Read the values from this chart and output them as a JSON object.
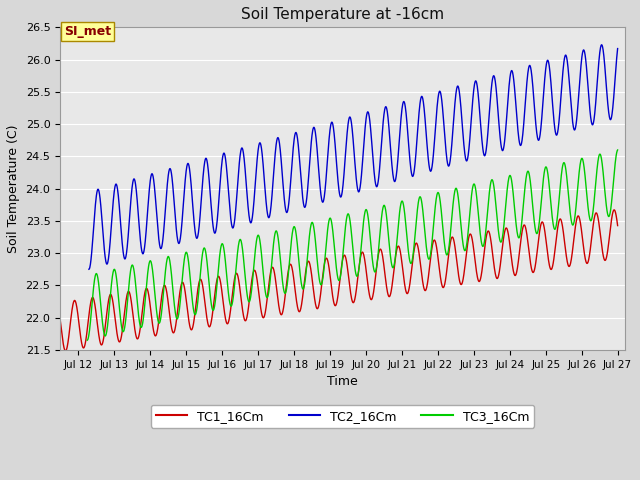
{
  "title": "Soil Temperature at -16cm",
  "xlabel": "Time",
  "ylabel": "Soil Temperature (C)",
  "ylim": [
    21.5,
    26.5
  ],
  "yticks": [
    21.5,
    22.0,
    22.5,
    23.0,
    23.5,
    24.0,
    24.5,
    25.0,
    25.5,
    26.0,
    26.5
  ],
  "xlim_days": [
    11.5,
    27.2
  ],
  "xtick_days": [
    12,
    13,
    14,
    15,
    16,
    17,
    18,
    19,
    20,
    21,
    22,
    23,
    24,
    25,
    26,
    27
  ],
  "xtick_labels": [
    "Jul 12",
    "Jul 13",
    "Jul 14",
    "Jul 15",
    "Jul 16",
    "Jul 17",
    "Jul 18",
    "Jul 19",
    "Jul 20",
    "Jul 21",
    "Jul 22",
    "Jul 23",
    "Jul 24",
    "Jul 25",
    "Jul 26",
    "Jul 27"
  ],
  "legend_labels": [
    "TC1_16Cm",
    "TC2_16Cm",
    "TC3_16Cm"
  ],
  "legend_colors": [
    "#cc0000",
    "#0000cc",
    "#00cc00"
  ],
  "fig_bg_color": "#d8d8d8",
  "ax_bg_color": "#e8e8e8",
  "grid_color": "#ffffff",
  "annotation_text": "SI_met",
  "annotation_bg": "#ffff99",
  "annotation_border": "#aa8800",
  "annotation_text_color": "#880000",
  "tc1_start": 21.85,
  "tc1_end": 23.3,
  "tc1_amp": 0.38,
  "tc1_freq": 2.0,
  "tc1_phase": 2.8,
  "tc1_start_t": 11.5,
  "tc2_start": 23.35,
  "tc2_end": 25.7,
  "tc2_amp": 0.6,
  "tc2_freq": 2.0,
  "tc2_phase": 0.9,
  "tc2_start_t": 12.3,
  "tc3_start": 22.15,
  "tc3_end": 24.1,
  "tc3_amp": 0.5,
  "tc3_freq": 2.0,
  "tc3_phase": 1.5,
  "tc3_start_t": 12.25
}
